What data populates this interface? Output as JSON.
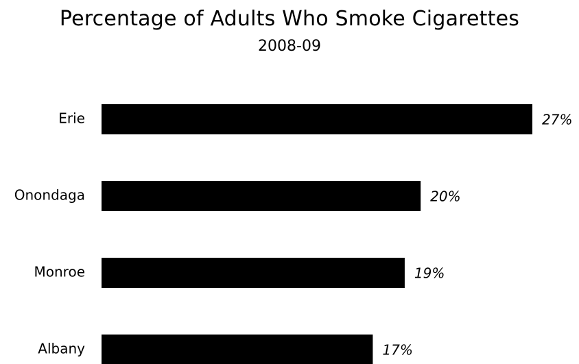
{
  "chart_data": {
    "type": "bar",
    "orientation": "horizontal",
    "title": "Percentage of Adults Who Smoke Cigarettes",
    "subtitle": "2008-09",
    "categories": [
      "Erie",
      "Onondaga",
      "Monroe",
      "Albany"
    ],
    "values": [
      27,
      20,
      19,
      17
    ],
    "value_labels": [
      "27%",
      "20%",
      "19%",
      "17%"
    ],
    "unit": "%",
    "xlim": [
      0,
      27
    ],
    "grid": false,
    "legend": "none",
    "bar_color": "#000000",
    "text_color": "#000000",
    "background": "#ffffff"
  }
}
